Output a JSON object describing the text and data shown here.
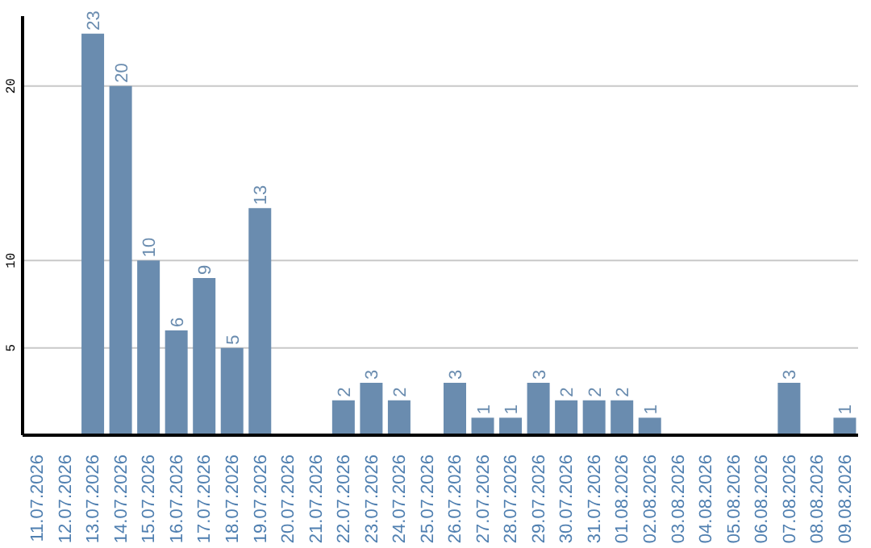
{
  "chart_data": {
    "type": "bar",
    "categories": [
      "11.07.2026",
      "12.07.2026",
      "13.07.2026",
      "14.07.2026",
      "15.07.2026",
      "16.07.2026",
      "17.07.2026",
      "18.07.2026",
      "19.07.2026",
      "20.07.2026",
      "21.07.2026",
      "22.07.2026",
      "23.07.2026",
      "24.07.2026",
      "25.07.2026",
      "26.07.2026",
      "27.07.2026",
      "28.07.2026",
      "29.07.2026",
      "30.07.2026",
      "31.07.2026",
      "01.08.2026",
      "02.08.2026",
      "03.08.2026",
      "04.08.2026",
      "05.08.2026",
      "06.08.2026",
      "07.08.2026",
      "08.08.2026",
      "09.08.2026"
    ],
    "values": [
      0,
      0,
      23,
      20,
      10,
      6,
      9,
      5,
      13,
      0,
      0,
      2,
      3,
      2,
      0,
      3,
      1,
      1,
      3,
      2,
      2,
      2,
      1,
      0,
      0,
      0,
      0,
      3,
      0,
      1
    ],
    "value_labels": [
      null,
      null,
      "23",
      "20",
      "10",
      "6",
      "9",
      "5",
      "13",
      null,
      null,
      "2",
      "3",
      "2",
      null,
      "3",
      "1",
      "1",
      "3",
      "2",
      "2",
      "2",
      "1",
      null,
      null,
      null,
      null,
      "3",
      null,
      "1"
    ],
    "color": "#6a8caf",
    "ylim": [
      0,
      24
    ],
    "yticks": [
      5,
      10,
      20
    ],
    "grid": "y"
  }
}
